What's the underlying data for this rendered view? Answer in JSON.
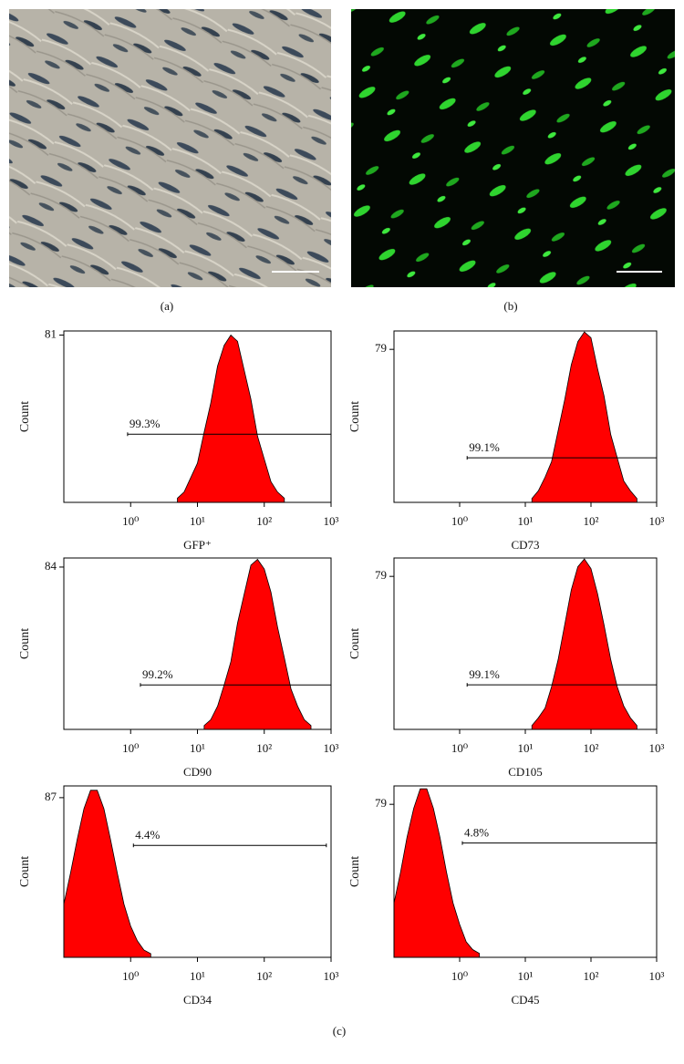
{
  "panel_labels": [
    "(a)",
    "(b)",
    "(c)"
  ],
  "chart_data": [
    {
      "type": "area",
      "x_label": "GFP⁺",
      "y_label": "Count",
      "color": "#ff0000",
      "log_x": true,
      "xlim": [
        0.1,
        1000
      ],
      "xticks": [
        {
          "value": 1,
          "label": "10⁰"
        },
        {
          "value": 10,
          "label": "10¹"
        },
        {
          "value": 100,
          "label": "10²"
        },
        {
          "value": 1000,
          "label": "10³"
        }
      ],
      "ylim": [
        0,
        83
      ],
      "yticks": [
        81
      ],
      "x": [
        5.01,
        6.31,
        7.94,
        10,
        12.6,
        15.8,
        20,
        25.1,
        31.6,
        39.8,
        50.1,
        63.1,
        79.4,
        100,
        126,
        158,
        200
      ],
      "values": [
        2,
        5,
        12,
        19,
        34,
        48,
        66,
        76,
        81,
        78,
        64,
        50,
        32,
        21,
        10,
        5,
        2
      ],
      "gate": {
        "label": "99.3%",
        "x": [
          0.9,
          1000
        ],
        "y": 33
      }
    },
    {
      "type": "area",
      "x_label": "CD73",
      "y_label": "Count",
      "color": "#ff0000",
      "log_x": true,
      "xlim": [
        0.1,
        1000
      ],
      "xticks": [
        {
          "value": 1,
          "label": "10⁰"
        },
        {
          "value": 10,
          "label": "10¹"
        },
        {
          "value": 100,
          "label": "10²"
        },
        {
          "value": 1000,
          "label": "10³"
        }
      ],
      "ylim": [
        0,
        88.5
      ],
      "yticks": [
        79
      ],
      "x": [
        12.6,
        15.8,
        20,
        25.1,
        31.6,
        39.8,
        50.1,
        63.1,
        79.4,
        100,
        126,
        158,
        200,
        251,
        316,
        398,
        501
      ],
      "values": [
        2,
        6,
        13,
        21,
        37,
        53,
        71,
        83,
        88,
        85,
        69,
        55,
        35,
        23,
        11,
        6,
        2
      ],
      "gate": {
        "label": "99.1%",
        "x": [
          1.3,
          1000
        ],
        "y": 23
      }
    },
    {
      "type": "area",
      "x_label": "CD90",
      "y_label": "Count",
      "color": "#ff0000",
      "log_x": true,
      "xlim": [
        0.1,
        1000
      ],
      "xticks": [
        {
          "value": 1,
          "label": "10⁰"
        },
        {
          "value": 10,
          "label": "10¹"
        },
        {
          "value": 100,
          "label": "10²"
        },
        {
          "value": 1000,
          "label": "10³"
        }
      ],
      "ylim": [
        0,
        88.7
      ],
      "yticks": [
        84
      ],
      "x": [
        12.6,
        15.8,
        20,
        25.1,
        31.6,
        39.8,
        50.1,
        63.1,
        79.4,
        100,
        126,
        158,
        200,
        251,
        316,
        398,
        501
      ],
      "values": [
        2,
        5,
        12,
        23,
        35,
        55,
        70,
        85,
        88,
        83,
        71,
        53,
        37,
        21,
        12,
        5,
        2
      ],
      "gate": {
        "label": "99.2%",
        "x": [
          1.4,
          1000
        ],
        "y": 23
      }
    },
    {
      "type": "area",
      "x_label": "CD105",
      "y_label": "Count",
      "color": "#ff0000",
      "log_x": true,
      "xlim": [
        0.1,
        1000
      ],
      "xticks": [
        {
          "value": 1,
          "label": "10⁰"
        },
        {
          "value": 10,
          "label": "10¹"
        },
        {
          "value": 100,
          "label": "10²"
        },
        {
          "value": 1000,
          "label": "10³"
        }
      ],
      "ylim": [
        0,
        88.5
      ],
      "yticks": [
        79
      ],
      "x": [
        12.6,
        15.8,
        20,
        25.1,
        31.6,
        39.8,
        50.1,
        63.1,
        79.4,
        100,
        126,
        158,
        200,
        251,
        316,
        398,
        501
      ],
      "values": [
        2,
        6,
        11,
        22,
        36,
        54,
        72,
        84,
        88,
        83,
        70,
        54,
        36,
        22,
        12,
        6,
        2
      ],
      "gate": {
        "label": "99.1%",
        "x": [
          1.3,
          1000
        ],
        "y": 23
      }
    },
    {
      "type": "area",
      "x_label": "CD34",
      "y_label": "Count",
      "color": "#ff0000",
      "log_x": true,
      "xlim": [
        0.1,
        1000
      ],
      "xticks": [
        {
          "value": 1,
          "label": "10⁰"
        },
        {
          "value": 10,
          "label": "10¹"
        },
        {
          "value": 100,
          "label": "10²"
        },
        {
          "value": 1000,
          "label": "10³"
        }
      ],
      "ylim": [
        0,
        93.4
      ],
      "yticks": [
        87
      ],
      "x": [
        0.1,
        0.126,
        0.158,
        0.2,
        0.251,
        0.316,
        0.398,
        0.501,
        0.631,
        0.794,
        1,
        1.26,
        1.58,
        2
      ],
      "values": [
        29,
        46,
        64,
        81,
        91,
        91,
        81,
        64,
        46,
        29,
        17,
        9,
        4,
        2
      ],
      "gate": {
        "label": "4.4%",
        "x": [
          1.1,
          850
        ],
        "y": 61
      }
    },
    {
      "type": "area",
      "x_label": "CD45",
      "y_label": "Count",
      "color": "#ff0000",
      "log_x": true,
      "xlim": [
        0.1,
        1000
      ],
      "xticks": [
        {
          "value": 1,
          "label": "10⁰"
        },
        {
          "value": 10,
          "label": "10¹"
        },
        {
          "value": 100,
          "label": "10²"
        },
        {
          "value": 1000,
          "label": "10³"
        }
      ],
      "ylim": [
        0,
        88.5
      ],
      "yticks": [
        79
      ],
      "x": [
        0.1,
        0.126,
        0.158,
        0.2,
        0.251,
        0.316,
        0.398,
        0.501,
        0.631,
        0.794,
        1,
        1.26,
        1.58,
        2
      ],
      "values": [
        28,
        44,
        62,
        77,
        87,
        87,
        77,
        62,
        44,
        28,
        17,
        8,
        4,
        2
      ],
      "gate": {
        "label": "4.8%",
        "x": [
          1.1,
          1000
        ],
        "y": 59
      }
    }
  ]
}
